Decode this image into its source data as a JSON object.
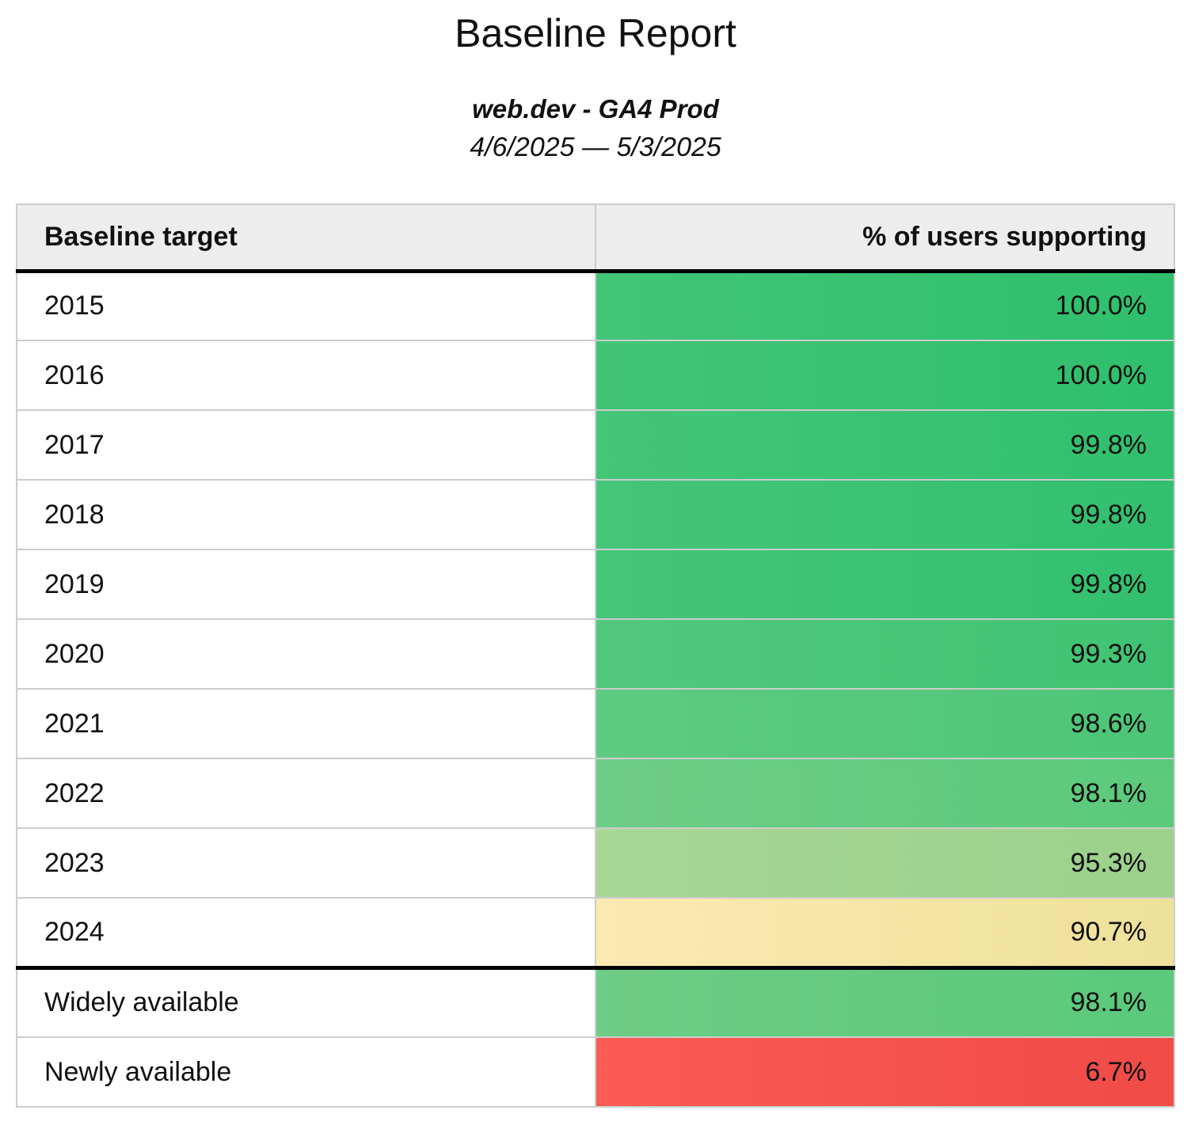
{
  "page": {
    "title": "Baseline Report",
    "subtitle": "web.dev - GA4 Prod",
    "date_range": "4/6/2025 — 5/3/2025"
  },
  "colors": {
    "header_bg": "#ededed",
    "border_light": "#cccccc",
    "border_strong": "#000000",
    "green_high": "#35c070",
    "yellow_mid": "#f5e6a4",
    "red_low": "#f4524c"
  },
  "table": {
    "columns": [
      {
        "label": "Baseline target",
        "align": "left"
      },
      {
        "label": "% of users supporting",
        "align": "right"
      }
    ],
    "rows": [
      {
        "target": "2015",
        "percent": "100.0%",
        "color_left": "#42c577",
        "color_right": "#2fbf6c",
        "separator_above": false
      },
      {
        "target": "2016",
        "percent": "100.0%",
        "color_left": "#42c477",
        "color_right": "#2fbf6c",
        "separator_above": false
      },
      {
        "target": "2017",
        "percent": "99.8%",
        "color_left": "#44c578",
        "color_right": "#31c06d",
        "separator_above": false
      },
      {
        "target": "2018",
        "percent": "99.8%",
        "color_left": "#45c578",
        "color_right": "#32c06e",
        "separator_above": false
      },
      {
        "target": "2019",
        "percent": "99.8%",
        "color_left": "#45c578",
        "color_right": "#32c06e",
        "separator_above": false
      },
      {
        "target": "2020",
        "percent": "99.3%",
        "color_left": "#52c87e",
        "color_right": "#3fc373",
        "separator_above": false
      },
      {
        "target": "2021",
        "percent": "98.6%",
        "color_left": "#5fca82",
        "color_right": "#4cc678",
        "separator_above": false
      },
      {
        "target": "2022",
        "percent": "98.1%",
        "color_left": "#6ecd86",
        "color_right": "#5bc97c",
        "separator_above": false
      },
      {
        "target": "2023",
        "percent": "95.3%",
        "color_left": "#a8d695",
        "color_right": "#9bd18b",
        "separator_above": false
      },
      {
        "target": "2024",
        "percent": "90.7%",
        "color_left": "#fce9b2",
        "color_right": "#ede19a",
        "separator_above": false
      },
      {
        "target": "Widely available",
        "percent": "98.1%",
        "color_left": "#6dcc85",
        "color_right": "#5bc97b",
        "separator_above": true
      },
      {
        "target": "Newly available",
        "percent": "6.7%",
        "color_left": "#fa5b55",
        "color_right": "#f04b47",
        "separator_above": false
      }
    ]
  },
  "chart_data": {
    "type": "table",
    "title": "Baseline Report",
    "subtitle": "web.dev - GA4 Prod",
    "date_range": "4/6/2025 — 5/3/2025",
    "columns": [
      "Baseline target",
      "% of users supporting"
    ],
    "categories": [
      "2015",
      "2016",
      "2017",
      "2018",
      "2019",
      "2020",
      "2021",
      "2022",
      "2023",
      "2024",
      "Widely available",
      "Newly available"
    ],
    "values": [
      100.0,
      100.0,
      99.8,
      99.8,
      99.8,
      99.3,
      98.6,
      98.1,
      95.3,
      90.7,
      98.1,
      6.7
    ],
    "value_unit": "%",
    "color_encoding": "cell background scales green (high) through yellow (~90%) to red (low)",
    "layout": "two-column table, values right-aligned; thick rule under header and above 'Widely available' row"
  }
}
